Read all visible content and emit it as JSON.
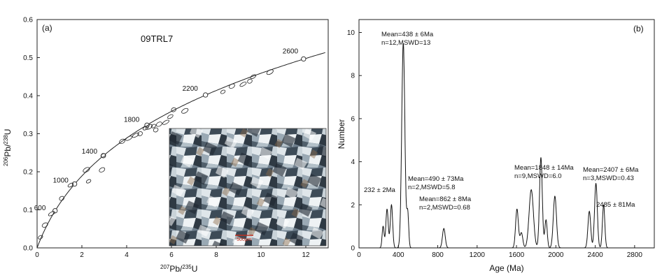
{
  "chart_data": [
    {
      "panel": "(a)",
      "type": "scatter",
      "sample": "09TRL7",
      "xlabel_main": "Pb/",
      "xlabel_sup1": "207",
      "xlabel_sup2": "235",
      "xlabel_tail": "U",
      "ylabel_main": "Pb/",
      "ylabel_sup1": "206",
      "ylabel_sup2": "238",
      "ylabel_tail": "U",
      "xlim": [
        0,
        13
      ],
      "ylim": [
        0,
        0.6
      ],
      "xticks": [
        "0",
        "2",
        "4",
        "6",
        "8",
        "10",
        "12"
      ],
      "yticks": [
        "0.0",
        "0.1",
        "0.2",
        "0.3",
        "0.4",
        "0.5",
        "0.6"
      ],
      "concordia_labels": [
        {
          "label": "600",
          "x": 0.804,
          "y": 0.0976
        },
        {
          "label": "1000",
          "x": 1.675,
          "y": 0.1679
        },
        {
          "label": "1400",
          "x": 2.962,
          "y": 0.2424
        },
        {
          "label": "1800",
          "x": 4.907,
          "y": 0.3224
        },
        {
          "label": "2200",
          "x": 7.52,
          "y": 0.4018
        },
        {
          "label": "2600",
          "x": 11.9,
          "y": 0.4965
        }
      ],
      "ellipses": [
        {
          "x": 0.15,
          "y": 0.028
        },
        {
          "x": 0.35,
          "y": 0.06
        },
        {
          "x": 0.65,
          "y": 0.09
        },
        {
          "x": 1.1,
          "y": 0.13
        },
        {
          "x": 1.5,
          "y": 0.165
        },
        {
          "x": 2.2,
          "y": 0.205
        },
        {
          "x": 2.95,
          "y": 0.243
        },
        {
          "x": 3.8,
          "y": 0.28
        },
        {
          "x": 4.1,
          "y": 0.288
        },
        {
          "x": 4.6,
          "y": 0.3
        },
        {
          "x": 4.85,
          "y": 0.315
        },
        {
          "x": 5.0,
          "y": 0.318
        },
        {
          "x": 5.2,
          "y": 0.32
        },
        {
          "x": 5.45,
          "y": 0.325
        },
        {
          "x": 5.75,
          "y": 0.33
        },
        {
          "x": 6.1,
          "y": 0.363
        },
        {
          "x": 5.95,
          "y": 0.345
        },
        {
          "x": 6.6,
          "y": 0.36
        },
        {
          "x": 8.3,
          "y": 0.41
        },
        {
          "x": 8.7,
          "y": 0.425
        },
        {
          "x": 9.2,
          "y": 0.43
        },
        {
          "x": 9.5,
          "y": 0.438
        },
        {
          "x": 9.65,
          "y": 0.45
        },
        {
          "x": 10.4,
          "y": 0.462
        },
        {
          "x": 2.3,
          "y": 0.175
        },
        {
          "x": 2.9,
          "y": 0.205
        },
        {
          "x": 4.4,
          "y": 0.296
        },
        {
          "x": 5.3,
          "y": 0.31
        }
      ],
      "inset": {
        "scale_label": "500μm"
      }
    },
    {
      "panel": "(b)",
      "type": "line",
      "xlabel": "Age (Ma)",
      "ylabel": "Number",
      "xlim": [
        0,
        3000
      ],
      "ylim": [
        0,
        10.6
      ],
      "xticks": [
        "0",
        "400",
        "800",
        "1200",
        "1600",
        "2000",
        "2400",
        "2800"
      ],
      "yticks": [
        "0",
        "2",
        "4",
        "6",
        "8",
        "10"
      ],
      "peaks": [
        {
          "center": 245,
          "height": 1.0,
          "width": 10
        },
        {
          "center": 285,
          "height": 1.8,
          "width": 12
        },
        {
          "center": 330,
          "height": 2.0,
          "width": 12
        },
        {
          "center": 450,
          "height": 9.5,
          "width": 16
        },
        {
          "center": 495,
          "height": 1.6,
          "width": 10
        },
        {
          "center": 862,
          "height": 0.9,
          "width": 14
        },
        {
          "center": 1605,
          "height": 1.8,
          "width": 14
        },
        {
          "center": 1650,
          "height": 0.7,
          "width": 14
        },
        {
          "center": 1750,
          "height": 2.7,
          "width": 22
        },
        {
          "center": 1848,
          "height": 4.2,
          "width": 14
        },
        {
          "center": 1900,
          "height": 1.3,
          "width": 12
        },
        {
          "center": 1990,
          "height": 2.4,
          "width": 16
        },
        {
          "center": 2340,
          "height": 1.7,
          "width": 14
        },
        {
          "center": 2407,
          "height": 3.0,
          "width": 14
        },
        {
          "center": 2485,
          "height": 2.0,
          "width": 12
        }
      ],
      "annotations": [
        {
          "line1": "Mean=438 ± 6Ma",
          "line2": "n=12,MSWD=13"
        },
        {
          "line1": "Mean=490 ± 73Ma",
          "line2": "n=2,MSWD=5.8"
        },
        {
          "line1": "Mean=862 ± 8Ma",
          "line2": "n=2,MSWD=0.68"
        },
        {
          "line1": "Mean=1848 ± 14Ma",
          "line2": "n=9,MSWD=6.0"
        },
        {
          "line1": "Mean=2407 ± 6Ma",
          "line2": "n=3,MSWD=0.43"
        }
      ],
      "age_labels": [
        "232 ± 2Ma",
        "2485 ± 81Ma"
      ]
    }
  ]
}
